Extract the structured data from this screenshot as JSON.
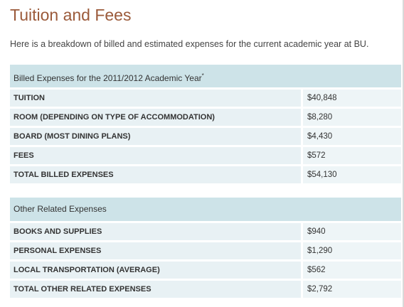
{
  "page": {
    "title": "Tuition and Fees",
    "intro": "Here is a breakdown of billed and estimated expenses for the current academic year at BU."
  },
  "billed": {
    "header": "Billed Expenses for the 2011/2012 Academic Year",
    "header_mark": "*",
    "rows": [
      {
        "label": "TUITION",
        "value": "$40,848"
      },
      {
        "label": "ROOM (DEPENDING ON TYPE OF ACCOMMODATION)",
        "value": "$8,280"
      },
      {
        "label": "BOARD (MOST DINING PLANS)",
        "value": "$4,430"
      },
      {
        "label": "FEES",
        "value": "$572"
      },
      {
        "label": "TOTAL BILLED EXPENSES",
        "value": "$54,130"
      }
    ]
  },
  "other": {
    "header": "Other Related Expenses",
    "rows": [
      {
        "label": "BOOKS AND SUPPLIES",
        "value": "$940"
      },
      {
        "label": "PERSONAL EXPENSES",
        "value": "$1,290"
      },
      {
        "label": "LOCAL TRANSPORTATION (AVERAGE)",
        "value": "$562"
      },
      {
        "label": "TOTAL OTHER RELATED EXPENSES",
        "value": "$2,792"
      }
    ]
  }
}
